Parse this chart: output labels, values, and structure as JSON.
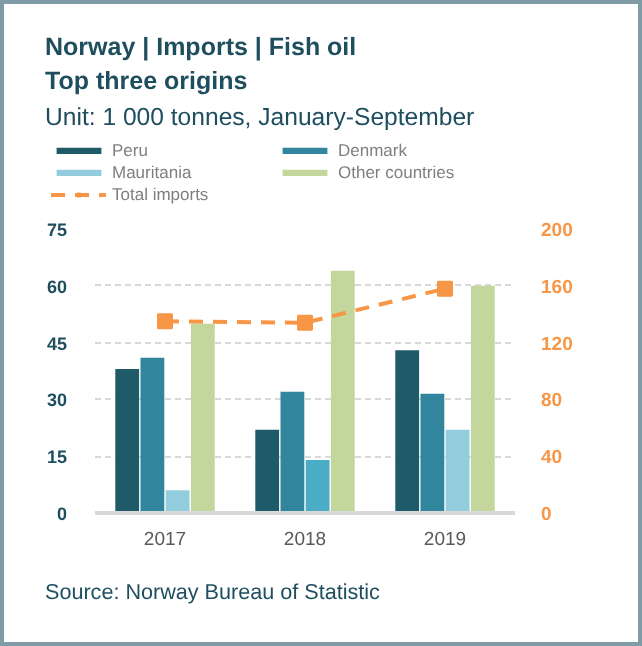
{
  "chart_data": {
    "type": "bar",
    "title": "Norway | Imports | Fish oil",
    "subtitle": "Top three origins",
    "annotations": [
      "Unit: 1 000 tonnes, January-September",
      "Source: Norway Bureau of Statistic"
    ],
    "categories": [
      "2017",
      "2018",
      "2019"
    ],
    "series": [
      {
        "name": "Peru",
        "color": "#1f5a69",
        "values": [
          38,
          22,
          43
        ]
      },
      {
        "name": "Denmark",
        "color": "#31859c",
        "values": [
          41,
          32,
          31.5
        ]
      },
      {
        "name": "Mauritania",
        "color": "#93cddd",
        "colors": [
          "#93cddd",
          "#4bacc6",
          "#93cddd"
        ],
        "values": [
          6,
          14,
          22
        ]
      },
      {
        "name": "Other countries",
        "color": "#c3d69b",
        "values": [
          50,
          64,
          60
        ]
      },
      {
        "name": "Total imports",
        "type": "line",
        "axis": "y2",
        "color": "#f79646",
        "marker": "square",
        "line_style": "dashed",
        "values": [
          135,
          134,
          158
        ]
      }
    ],
    "ylim": [
      0,
      75
    ],
    "yticks": [
      0,
      15,
      30,
      45,
      60,
      75
    ],
    "y2lim": [
      0,
      200
    ],
    "y2ticks": [
      0,
      40,
      80,
      120,
      160,
      200
    ],
    "grid": "y",
    "legend": "top"
  }
}
